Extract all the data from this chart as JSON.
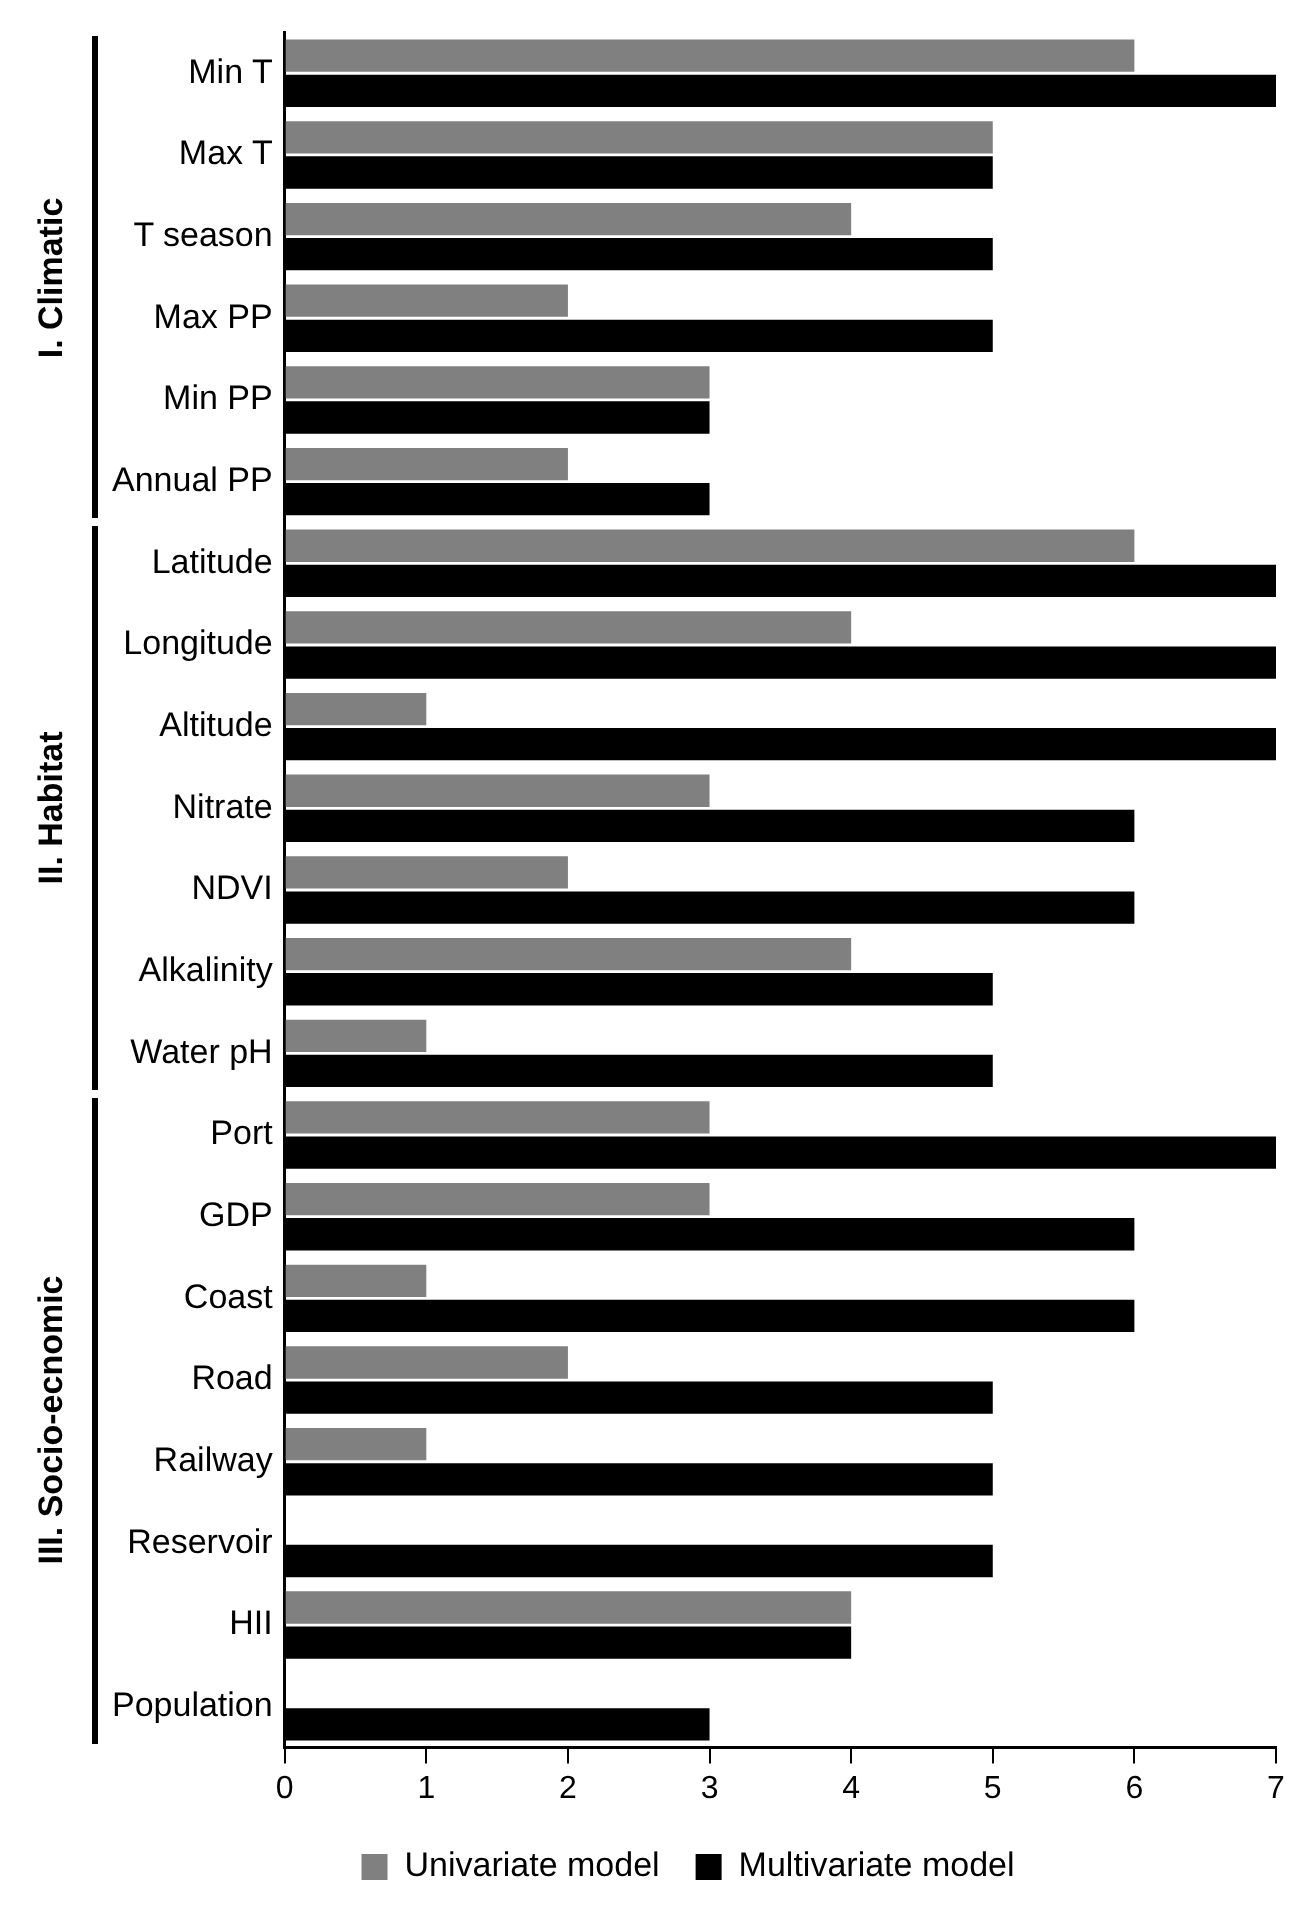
{
  "chart_data": {
    "type": "bar",
    "orientation": "horizontal",
    "categories": [
      "Min T",
      "Max T",
      "T season",
      "Max PP",
      "Min PP",
      "Annual PP",
      "Latitude",
      "Longitude",
      "Altitude",
      "Nitrate",
      "NDVI",
      "Alkalinity",
      "Water pH",
      "Port",
      "GDP",
      "Coast",
      "Road",
      "Railway",
      "Reservoir",
      "HII",
      "Population"
    ],
    "series": [
      {
        "name": "Univariate model",
        "color": "#808080",
        "values": [
          6,
          5,
          4,
          2,
          3,
          2,
          6,
          4,
          1,
          3,
          2,
          4,
          1,
          3,
          3,
          1,
          2,
          1,
          0,
          4,
          0
        ]
      },
      {
        "name": "Multivariate model",
        "color": "#000000",
        "values": [
          7,
          5,
          5,
          5,
          3,
          3,
          7,
          7,
          7,
          6,
          6,
          5,
          5,
          7,
          6,
          6,
          5,
          5,
          5,
          4,
          3
        ]
      }
    ],
    "xlim": [
      0,
      7
    ],
    "xticks": [
      0,
      1,
      2,
      3,
      4,
      5,
      6,
      7
    ],
    "grid": false,
    "legend": "bottom",
    "annotations": [
      "I. Climatic",
      "II. Habitat",
      "III. Socio-ecnomic"
    ]
  }
}
